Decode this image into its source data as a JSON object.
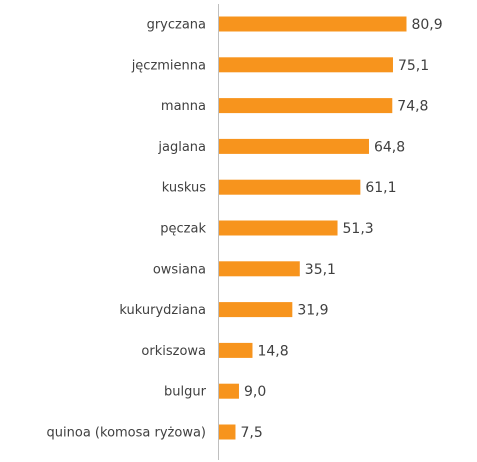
{
  "chart_data": {
    "type": "bar",
    "orientation": "horizontal",
    "categories": [
      "gryczana",
      "jęczmienna",
      "manna",
      "jaglana",
      "kuskus",
      "pęczak",
      "owsiana",
      "kukurydziana",
      "orkiszowa",
      "bulgur",
      "quinoa (komosa ryżowa)"
    ],
    "values": [
      80.9,
      75.1,
      74.8,
      64.8,
      61.1,
      51.3,
      35.1,
      31.9,
      14.8,
      9.0,
      7.5
    ],
    "value_labels": [
      "80,9",
      "75,1",
      "74,8",
      "64,8",
      "61,1",
      "51,3",
      "35,1",
      "31,9",
      "14,8",
      "9,0",
      "7,5"
    ],
    "bar_color": "#F7941D",
    "axis_color": "#BFBFBF",
    "xlim": [
      0,
      100
    ],
    "grid": false,
    "legend": "none"
  }
}
